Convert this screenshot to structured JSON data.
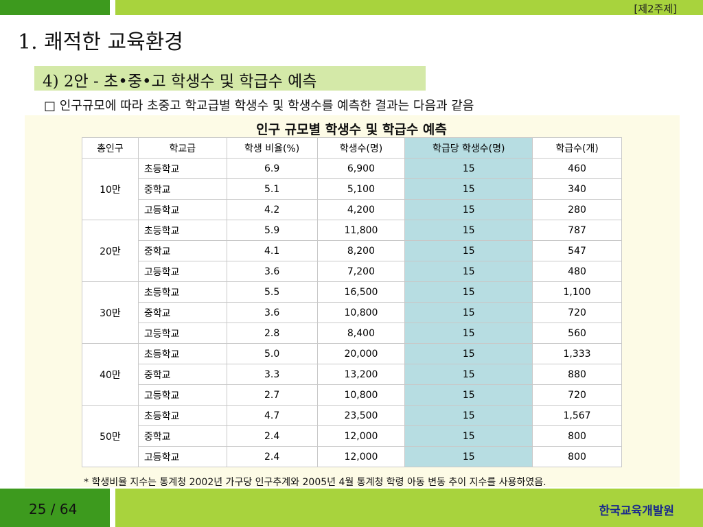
{
  "section_tag": "[제2주제]",
  "title": "1. 쾌적한 교육환경",
  "subtitle": "4) 2안 -  초•중•고 학생수 및 학급수 예측",
  "bullet": "□ 인구규모에 따라 초중고 학교급별 학생수 및 학생수를 예측한 결과는 다음과 같음",
  "table": {
    "title": "인구 규모별 학생수 및 학급수 예측",
    "headers": [
      "총인구",
      "학교급",
      "학생 비율(%)",
      "학생수(명)",
      "학급당 학생수(명)",
      "학급수(개)"
    ],
    "groups": [
      {
        "population": "10만",
        "rows": [
          {
            "school": "초등학교",
            "ratio": "6.9",
            "students": "6,900",
            "per_class": "15",
            "classes": "460"
          },
          {
            "school": "중학교",
            "ratio": "5.1",
            "students": "5,100",
            "per_class": "15",
            "classes": "340"
          },
          {
            "school": "고등학교",
            "ratio": "4.2",
            "students": "4,200",
            "per_class": "15",
            "classes": "280"
          }
        ]
      },
      {
        "population": "20만",
        "rows": [
          {
            "school": "초등학교",
            "ratio": "5.9",
            "students": "11,800",
            "per_class": "15",
            "classes": "787"
          },
          {
            "school": "중학교",
            "ratio": "4.1",
            "students": "8,200",
            "per_class": "15",
            "classes": "547"
          },
          {
            "school": "고등학교",
            "ratio": "3.6",
            "students": "7,200",
            "per_class": "15",
            "classes": "480"
          }
        ]
      },
      {
        "population": "30만",
        "rows": [
          {
            "school": "초등학교",
            "ratio": "5.5",
            "students": "16,500",
            "per_class": "15",
            "classes": "1,100"
          },
          {
            "school": "중학교",
            "ratio": "3.6",
            "students": "10,800",
            "per_class": "15",
            "classes": "720"
          },
          {
            "school": "고등학교",
            "ratio": "2.8",
            "students": "8,400",
            "per_class": "15",
            "classes": "560"
          }
        ]
      },
      {
        "population": "40만",
        "rows": [
          {
            "school": "초등학교",
            "ratio": "5.0",
            "students": "20,000",
            "per_class": "15",
            "classes": "1,333"
          },
          {
            "school": "중학교",
            "ratio": "3.3",
            "students": "13,200",
            "per_class": "15",
            "classes": "880"
          },
          {
            "school": "고등학교",
            "ratio": "2.7",
            "students": "10,800",
            "per_class": "15",
            "classes": "720"
          }
        ]
      },
      {
        "population": "50만",
        "rows": [
          {
            "school": "초등학교",
            "ratio": "4.7",
            "students": "23,500",
            "per_class": "15",
            "classes": "1,567"
          },
          {
            "school": "중학교",
            "ratio": "2.4",
            "students": "12,000",
            "per_class": "15",
            "classes": "800"
          },
          {
            "school": "고등학교",
            "ratio": "2.4",
            "students": "12,000",
            "per_class": "15",
            "classes": "800"
          }
        ]
      }
    ]
  },
  "footnote": "* 학생비율 지수는 통계청 2002년 가구당 인구추계와 2005년 4월 통계청 학령 아동 변동 추이 지수를 사용하였음.",
  "footer": {
    "page_number": "25  /  64",
    "organization": "한국교육개발원"
  },
  "colors": {
    "bar_dark": "#3d9a1e",
    "bar_light": "#a8d33d",
    "subtitle_bg": "#d4e9a8",
    "content_bg": "#fdfbe6",
    "highlight_column": "#b7dde2",
    "org_text": "#1a2a8c"
  }
}
